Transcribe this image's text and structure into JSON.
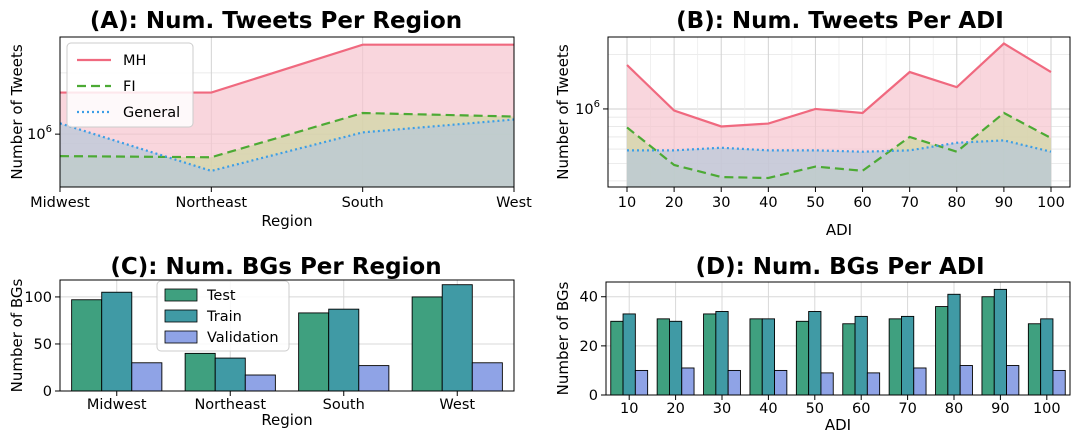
{
  "chart_data": [
    {
      "panel": "A",
      "type": "area",
      "title": "(A): Num. Tweets Per Region",
      "xlabel": "Region",
      "ylabel": "Number of Tweets",
      "y_scale": "log",
      "ylim": [
        550000,
        3000000
      ],
      "y_tick_labels": [
        {
          "value": 1000000,
          "base": "10",
          "exp": "6"
        }
      ],
      "categories": [
        "Midwest",
        "Northeast",
        "South",
        "West"
      ],
      "series": [
        {
          "name": "MH",
          "color": "#f0697f",
          "fill": "#f7c5ce",
          "dash": "",
          "values": [
            1600000,
            1600000,
            2750000,
            2750000
          ]
        },
        {
          "name": "FI",
          "color": "#4caa34",
          "fill": "#cfd7a3",
          "dash": "9,5",
          "values": [
            780000,
            770000,
            1270000,
            1220000
          ]
        },
        {
          "name": "General",
          "color": "#3c9ee6",
          "fill": "#b7c7d8",
          "dash": "2,3",
          "values": [
            1130000,
            660000,
            1020000,
            1180000
          ]
        }
      ],
      "legend": "top-left",
      "grid": true
    },
    {
      "panel": "B",
      "type": "area",
      "title": "(B): Num. Tweets Per ADI",
      "xlabel": "ADI",
      "ylabel": "Number of Tweets",
      "y_scale": "log",
      "ylim": [
        370000,
        2500000
      ],
      "y_tick_labels": [
        {
          "value": 1000000,
          "base": "10",
          "exp": "6"
        }
      ],
      "x": [
        10,
        20,
        30,
        40,
        50,
        60,
        70,
        80,
        90,
        100
      ],
      "series": [
        {
          "name": "MH",
          "color": "#f0697f",
          "fill": "#f7c5ce",
          "dash": "",
          "values": [
            1750000,
            980000,
            800000,
            830000,
            1000000,
            950000,
            1600000,
            1320000,
            2300000,
            1600000
          ]
        },
        {
          "name": "FI",
          "color": "#4caa34",
          "fill": "#cfd7a3",
          "dash": "9,5",
          "values": [
            790000,
            490000,
            420000,
            415000,
            480000,
            455000,
            700000,
            580000,
            950000,
            690000
          ]
        },
        {
          "name": "General",
          "color": "#3c9ee6",
          "fill": "#b7c7d8",
          "dash": "2,3",
          "values": [
            590000,
            590000,
            610000,
            590000,
            590000,
            580000,
            590000,
            650000,
            670000,
            580000
          ]
        }
      ],
      "grid": true
    },
    {
      "panel": "C",
      "type": "bar",
      "title": "(C): Num. BGs Per Region",
      "xlabel": "Region",
      "ylabel": "Number of BGs",
      "ylim": [
        0,
        118
      ],
      "yticks": [
        0,
        50,
        100
      ],
      "categories": [
        "Midwest",
        "Northeast",
        "South",
        "West"
      ],
      "series": [
        {
          "name": "Test",
          "color": "#3fa07f",
          "values": [
            97,
            40,
            83,
            100
          ]
        },
        {
          "name": "Train",
          "color": "#409aa5",
          "values": [
            105,
            35,
            87,
            113
          ]
        },
        {
          "name": "Validation",
          "color": "#8fa3e6",
          "values": [
            30,
            17,
            27,
            30
          ]
        }
      ],
      "legend": "top-center",
      "grid": true
    },
    {
      "panel": "D",
      "type": "bar",
      "title": "(D): Num. BGs Per ADI",
      "xlabel": "ADI",
      "ylabel": "Number of BGs",
      "ylim": [
        0,
        46
      ],
      "yticks": [
        0,
        20,
        40
      ],
      "categories": [
        "10",
        "20",
        "30",
        "40",
        "50",
        "60",
        "70",
        "80",
        "90",
        "100"
      ],
      "series": [
        {
          "name": "Test",
          "color": "#3fa07f",
          "values": [
            30,
            31,
            33,
            31,
            30,
            29,
            31,
            36,
            40,
            29
          ]
        },
        {
          "name": "Train",
          "color": "#409aa5",
          "values": [
            33,
            30,
            34,
            31,
            34,
            32,
            32,
            41,
            43,
            31
          ]
        },
        {
          "name": "Validation",
          "color": "#8fa3e6",
          "values": [
            10,
            11,
            10,
            10,
            9,
            9,
            11,
            12,
            12,
            10
          ]
        }
      ],
      "grid": true
    }
  ]
}
